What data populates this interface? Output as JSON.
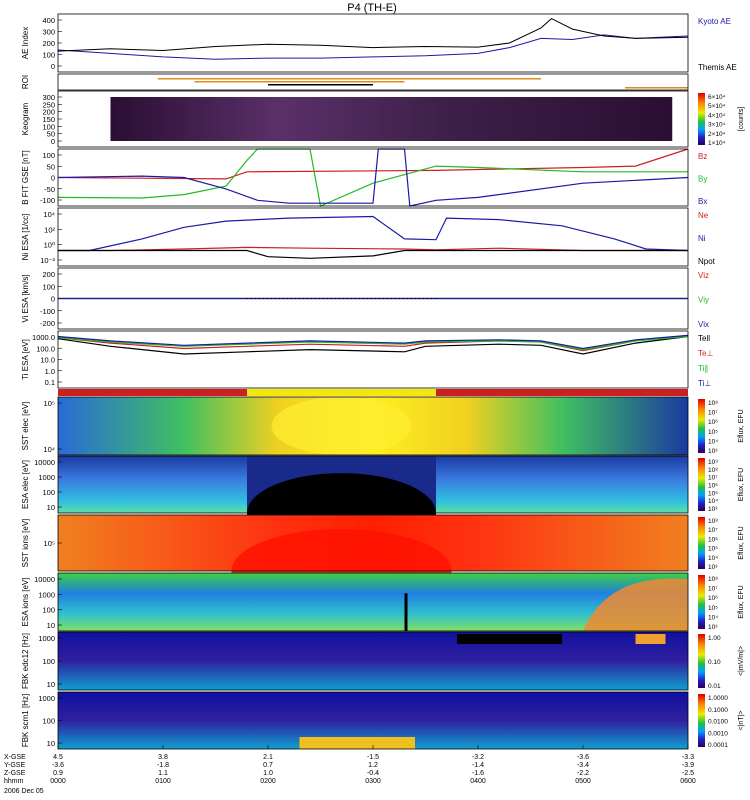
{
  "title": "P4 (TH-E)",
  "colors": {
    "blue": "#1a1aa8",
    "black": "#000000",
    "red": "#cc1f1f",
    "green": "#22bb22",
    "orange": "#e08a1e",
    "yellow": "#f2e80a",
    "bg": "#ffffff"
  },
  "chart_data": [
    {
      "type": "line",
      "panel": "ae",
      "ylabel": "AE Index",
      "ylim": [
        -100,
        400
      ],
      "ticks": [
        "400",
        "300",
        "200",
        "100",
        "0"
      ],
      "series": [
        {
          "name": "Kyoto AE",
          "x": [
            0,
            0.5,
            1,
            1.5,
            2,
            2.5,
            3,
            3.5,
            4,
            4.3,
            4.6,
            4.9,
            5.2,
            5.5,
            6
          ],
          "values": [
            90,
            60,
            30,
            10,
            20,
            20,
            30,
            40,
            60,
            110,
            190,
            180,
            220,
            190,
            210
          ]
        },
        {
          "name": "Themis AE",
          "x": [
            0,
            0.5,
            1,
            1.5,
            2,
            2.5,
            3,
            3.5,
            4,
            4.3,
            4.6,
            4.7,
            4.9,
            5.2,
            5.5,
            6
          ],
          "values": [
            80,
            100,
            85,
            120,
            140,
            130,
            110,
            120,
            115,
            150,
            280,
            360,
            270,
            210,
            190,
            200
          ]
        }
      ]
    },
    {
      "type": "bar",
      "panel": "roi",
      "ylabel": "ROI",
      "segments": [
        {
          "x": [
            0.95,
            4.6
          ],
          "color": "orange"
        },
        {
          "x": [
            1.3,
            3.3
          ],
          "color": "orange"
        },
        {
          "x": [
            2.0,
            3.0
          ],
          "color": "black"
        },
        {
          "x": [
            5.4,
            6.0
          ],
          "color": "orange"
        }
      ]
    },
    {
      "type": "heatmap",
      "panel": "keogram",
      "ylabel": "Keogram",
      "ylim": [
        0,
        300
      ],
      "ticks": [
        "300",
        "250",
        "200",
        "150",
        "100",
        "50",
        "0"
      ],
      "colorbar": [
        "6×10⁴",
        "5×10⁴",
        "4×10⁴",
        "3×10⁴",
        "2×10⁴",
        "1×10⁴"
      ],
      "colorbar_label": "[counts]"
    },
    {
      "type": "line",
      "panel": "bfield",
      "ylabel": "B FIT GSE [nT]",
      "ylim": [
        -100,
        100
      ],
      "ticks": [
        "100",
        "50",
        "0",
        "-50",
        "-100"
      ],
      "series": [
        {
          "name": "Bz",
          "x": [
            0,
            1.6,
            1.8,
            3.6,
            4.0,
            5.0,
            5.5,
            6.0
          ],
          "values": [
            0,
            -5,
            20,
            25,
            28,
            35,
            40,
            100
          ]
        },
        {
          "name": "By",
          "x": [
            0,
            0.8,
            1.2,
            1.6,
            1.8,
            1.9,
            2.4,
            2.5,
            3.0,
            3.6,
            4.0,
            5.0,
            6.0
          ],
          "values": [
            -70,
            -72,
            -60,
            -30,
            60,
            100,
            100,
            -100,
            -20,
            40,
            35,
            20,
            20
          ]
        },
        {
          "name": "Bx",
          "x": [
            0,
            0.8,
            1.2,
            1.6,
            1.9,
            2.2,
            3.0,
            3.05,
            3.3,
            3.35,
            3.6,
            4.0,
            5.0,
            6.0
          ],
          "values": [
            0,
            5,
            0,
            -40,
            -80,
            -90,
            -90,
            100,
            100,
            -100,
            -80,
            -70,
            -20,
            0
          ]
        }
      ]
    },
    {
      "type": "line",
      "panel": "density",
      "ylabel": "Ni ESA [1/cc]",
      "ylim": [
        -2,
        5.5
      ],
      "ticks": [
        "10⁴",
        "10²",
        "10⁰",
        "10⁻²"
      ],
      "series": [
        {
          "name": "Ne",
          "x": [
            0,
            0.5,
            1.2,
            1.8,
            2.4,
            3.3,
            3.6,
            4.2,
            5.0,
            6.0
          ],
          "values": [
            0,
            0,
            0.2,
            0.4,
            0.3,
            0.2,
            0.1,
            0.3,
            0,
            0
          ]
        },
        {
          "name": "Ni",
          "x": [
            0,
            0.3,
            0.8,
            1.2,
            1.6,
            2.2,
            3.0,
            3.3,
            3.6,
            3.7,
            4.2,
            4.8,
            5.3,
            5.6,
            6.0
          ],
          "values": [
            0,
            0,
            1.5,
            3.0,
            3.8,
            4.2,
            4.4,
            1.5,
            1.4,
            4.2,
            4.0,
            3.2,
            1.5,
            0.2,
            0
          ]
        },
        {
          "name": "Npot",
          "x": [
            0,
            1.8,
            2.0,
            2.4,
            3.0,
            3.3,
            6.0
          ],
          "values": [
            0,
            0,
            -0.8,
            -1.0,
            -0.7,
            0,
            0
          ]
        }
      ]
    },
    {
      "type": "line",
      "panel": "velocity",
      "ylabel": "Vi ESA [km/s]",
      "ylim": [
        -300,
        300
      ],
      "ticks": [
        "200",
        "100",
        "0",
        "-100",
        "-200"
      ],
      "series": [
        {
          "name": "Viz",
          "x": [
            0,
            1.8,
            3.6,
            6.0
          ],
          "values": [
            0,
            0,
            0,
            0
          ]
        },
        {
          "name": "Viy",
          "x": [
            0,
            1.8,
            3.6,
            6.0
          ],
          "values": [
            0,
            0,
            0,
            0
          ]
        },
        {
          "name": "Vix",
          "x": [
            0,
            1.8,
            3.6,
            6.0
          ],
          "values": [
            0,
            0,
            0,
            0
          ]
        }
      ]
    },
    {
      "type": "line",
      "panel": "temperature",
      "ylabel": "Ti ESA [eV]",
      "ylim": [
        -1.5,
        3.7
      ],
      "ticks": [
        "1000.0",
        "100.0",
        "10.0",
        "1.0",
        "0.1"
      ],
      "series": [
        {
          "name": "Tell",
          "x": [
            0,
            0.5,
            1.2,
            1.8,
            2.4,
            3.3,
            3.5,
            4.2,
            4.6,
            5.0,
            5.5,
            6.0
          ],
          "values": [
            3.0,
            2.3,
            1.6,
            1.8,
            2.0,
            1.8,
            2.3,
            2.5,
            2.4,
            1.6,
            2.6,
            3.2
          ]
        },
        {
          "name": "Te⊥",
          "x": [
            0,
            0.5,
            1.2,
            1.8,
            2.4,
            3.3,
            3.5,
            4.2,
            4.6,
            5.0,
            5.5,
            6.0
          ],
          "values": [
            3.1,
            2.6,
            2.1,
            2.3,
            2.5,
            2.3,
            2.6,
            2.8,
            2.7,
            1.9,
            2.8,
            3.3
          ]
        },
        {
          "name": "Ti∥",
          "x": [
            0,
            0.5,
            1.2,
            1.8,
            2.4,
            3.3,
            3.5,
            4.2,
            4.6,
            5.0,
            5.5,
            6.0
          ],
          "values": [
            3.1,
            2.7,
            2.3,
            2.5,
            2.7,
            2.5,
            2.7,
            2.8,
            2.7,
            2.0,
            2.8,
            3.2
          ]
        },
        {
          "name": "Ti⊥",
          "x": [
            0,
            0.5,
            1.2,
            1.8,
            2.4,
            3.3,
            3.5,
            4.2,
            4.6,
            5.0,
            5.5,
            6.0
          ],
          "values": [
            3.2,
            2.8,
            2.4,
            2.6,
            2.8,
            2.6,
            2.8,
            2.9,
            2.8,
            2.1,
            2.9,
            3.3
          ]
        }
      ]
    },
    {
      "type": "bar",
      "panel": "mode",
      "segments": [
        {
          "x": [
            0,
            1.8
          ],
          "color": "red"
        },
        {
          "x": [
            1.8,
            3.6
          ],
          "color": "yellow"
        },
        {
          "x": [
            3.6,
            6.0
          ],
          "color": "red"
        }
      ]
    },
    {
      "type": "heatmap",
      "panel": "sst_e",
      "ylabel": "SST elec [eV]",
      "ticks": [
        "10⁵",
        "10⁴"
      ],
      "colorbar_label": "Eflux, EFU",
      "colorbar": [
        "10⁸",
        "10⁷",
        "10⁶",
        "10⁵",
        "10⁴",
        "10³"
      ]
    },
    {
      "type": "heatmap",
      "panel": "esa_e",
      "ylabel": "ESA elec [eV]",
      "ticks": [
        "10000",
        "1000",
        "100",
        "10"
      ],
      "colorbar_label": "Eflux, EFU",
      "colorbar": [
        "10⁹",
        "10⁸",
        "10⁷",
        "10⁶",
        "10⁵",
        "10⁴",
        "10³"
      ]
    },
    {
      "type": "heatmap",
      "panel": "sst_i",
      "ylabel": "SST ions [eV]",
      "ticks": [
        "10⁵"
      ],
      "colorbar_label": "Eflux, EFU",
      "colorbar": [
        "10⁸",
        "10⁷",
        "10⁶",
        "10⁵",
        "10⁴",
        "10³"
      ]
    },
    {
      "type": "heatmap",
      "panel": "esa_i",
      "ylabel": "ESA ions [eV]",
      "ticks": [
        "10000",
        "1000",
        "100",
        "10"
      ],
      "colorbar_label": "Eflux, EFU",
      "colorbar": [
        "10⁸",
        "10⁷",
        "10⁶",
        "10⁵",
        "10⁴",
        "10³"
      ]
    },
    {
      "type": "heatmap",
      "panel": "fbk_edc",
      "ylabel": "FBK edc12 [Hz]",
      "ticks": [
        "1000",
        "100",
        "10"
      ],
      "colorbar_label": "<|mV/m|>",
      "colorbar": [
        "1.00",
        "0.10",
        "0.01"
      ]
    },
    {
      "type": "heatmap",
      "panel": "fbk_scm",
      "ylabel": "FBK scm1 [Hz]",
      "ticks": [
        "1000",
        "100",
        "10"
      ],
      "colorbar_label": "<|nT|>",
      "colorbar": [
        "1.0000",
        "0.1000",
        "0.0100",
        "0.0010",
        "0.0001"
      ]
    }
  ],
  "x_axis": {
    "tick_x": [
      0,
      1,
      2,
      3,
      4,
      5,
      6
    ],
    "rows": [
      {
        "label": "X-GSE",
        "values": [
          "4.5",
          "3.8",
          "2.1",
          "-1.5",
          "-3.2",
          "-3.6",
          "-3.3"
        ]
      },
      {
        "label": "Y-GSE",
        "values": [
          "-3.6",
          "-1.8",
          "0.7",
          "1.2",
          "-1.4",
          "-3.4",
          "-3.9"
        ]
      },
      {
        "label": "Z-GSE",
        "values": [
          "0.9",
          "1.1",
          "1.0",
          "-0.4",
          "-1.6",
          "-2.2",
          "-2.5"
        ]
      },
      {
        "label": "hhmm",
        "values": [
          "0000",
          "0100",
          "0200",
          "0300",
          "0400",
          "0500",
          "0600"
        ]
      }
    ],
    "date": "2006 Dec 05"
  }
}
